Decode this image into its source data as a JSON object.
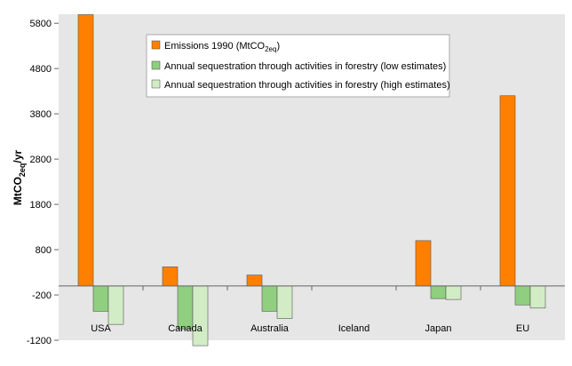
{
  "chart_data": {
    "type": "bar",
    "ylabel": "MtCO2eq/yr",
    "ylabel_parts": {
      "base": "MtCO",
      "sub": "2eq",
      "tail": "/yr"
    },
    "ylim": [
      -1200,
      6000
    ],
    "yticks": [
      -1200,
      -200,
      800,
      1800,
      2800,
      3800,
      4800,
      5800
    ],
    "grid": false,
    "legend_position": "top-center",
    "categories": [
      "USA",
      "Canada",
      "Australia",
      "Iceland",
      "Japan",
      "EU"
    ],
    "series": [
      {
        "name": "Emissions 1990 (MtCO2eq)",
        "name_parts": {
          "base": "Emissions 1990 (MtCO",
          "sub": "2eq",
          "tail": ")"
        },
        "color": "#ff8000",
        "values": [
          5990,
          420,
          240,
          0,
          1000,
          4200
        ]
      },
      {
        "name": "Annual sequestration through activities in forestry (low estimates)",
        "color": "#8fcf7f",
        "values": [
          -560,
          -950,
          -560,
          0,
          -280,
          -420
        ]
      },
      {
        "name": "Annual sequestration through activities in forestry (high estimates)",
        "color": "#d2ecc6",
        "values": [
          -850,
          -1320,
          -720,
          0,
          -300,
          -490
        ]
      }
    ],
    "colors": {
      "plot_background": "#e6e6e6",
      "axis": "#666666"
    }
  }
}
